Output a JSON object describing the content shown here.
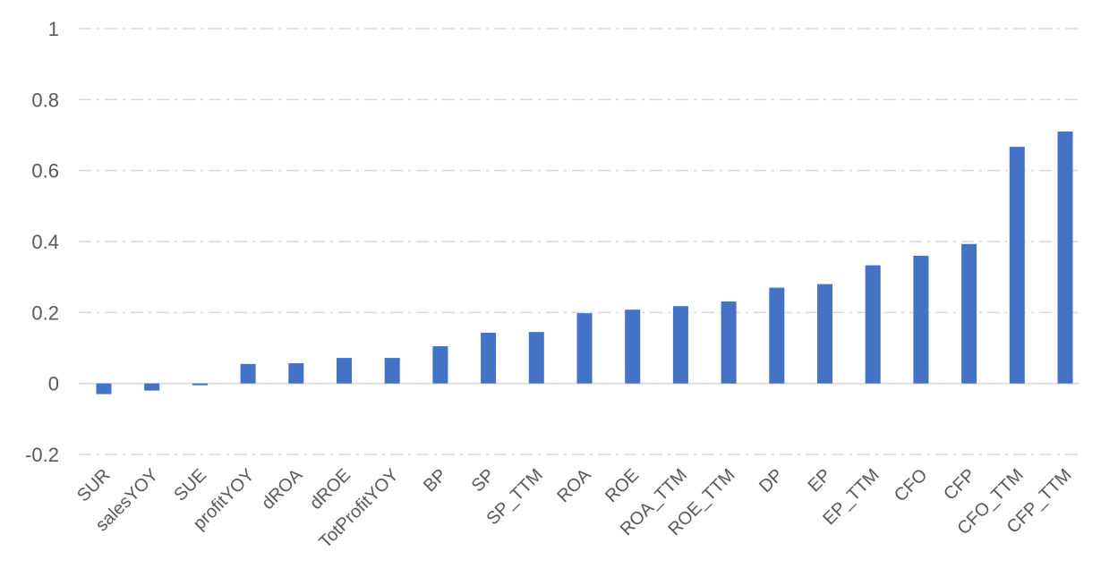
{
  "chart_data": {
    "type": "bar",
    "title": "",
    "xlabel": "",
    "ylabel": "",
    "categories": [
      "SUR",
      "salesYOY",
      "SUE",
      "profitYOY",
      "dROA",
      "dROE",
      "TotProfitYOY",
      "BP",
      "SP",
      "SP_TTM",
      "ROA",
      "ROE",
      "ROA_TTM",
      "ROE_TTM",
      "DP",
      "EP",
      "EP_TTM",
      "CFO",
      "CFP",
      "CFO_TTM",
      "CFP_TTM"
    ],
    "values": [
      -0.03,
      -0.02,
      -0.005,
      0.055,
      0.057,
      0.072,
      0.072,
      0.105,
      0.143,
      0.145,
      0.198,
      0.208,
      0.218,
      0.231,
      0.27,
      0.28,
      0.333,
      0.36,
      0.393,
      0.667,
      0.71
    ],
    "ylim": [
      -0.2,
      1
    ],
    "yticks": [
      -0.2,
      0,
      0.2,
      0.4,
      0.6,
      0.8,
      1
    ],
    "ytick_labels": [
      "-0.2",
      "0",
      "0.2",
      "0.4",
      "0.6",
      "0.8",
      "1"
    ],
    "grid": true,
    "grid_style": "dash-dot",
    "legend": "none",
    "bar_color": "#4472C4",
    "grid_color": "#d9d9d9"
  }
}
